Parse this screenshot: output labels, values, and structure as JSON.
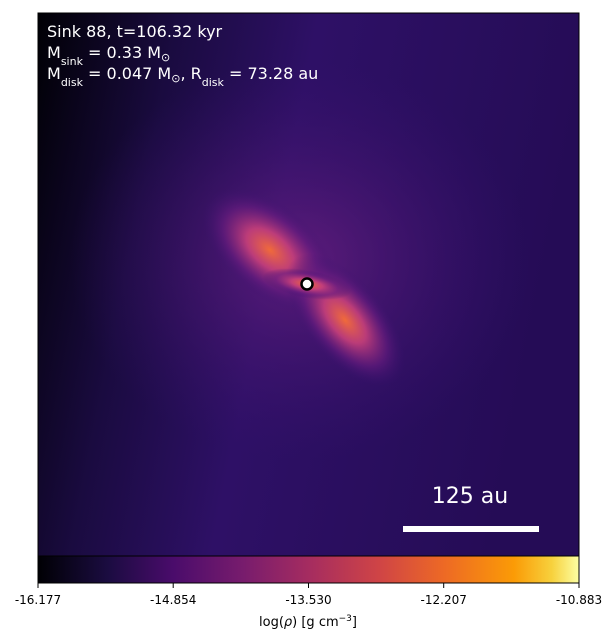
{
  "chart_data": {
    "type": "image",
    "annotations": [
      [
        "Sink 88, t=106.32 kyr"
      ],
      [
        "M",
        "sink",
        " = 0.33 M",
        "⊙"
      ],
      [
        "M",
        "disk",
        " = 0.047 M",
        "⊙",
        ", R",
        "disk",
        " = 73.28 au"
      ]
    ],
    "scale_bar_label": "125 au",
    "colorbar": {
      "label": [
        "log(",
        "ρ",
        ") [g cm",
        "−3",
        "]"
      ],
      "lim": [
        -16.177,
        -10.883
      ],
      "ticks": [
        -16.177,
        -14.854,
        {
          "value": -13.53,
          "label": "-13.530"
        },
        -12.207,
        -10.883
      ]
    }
  }
}
